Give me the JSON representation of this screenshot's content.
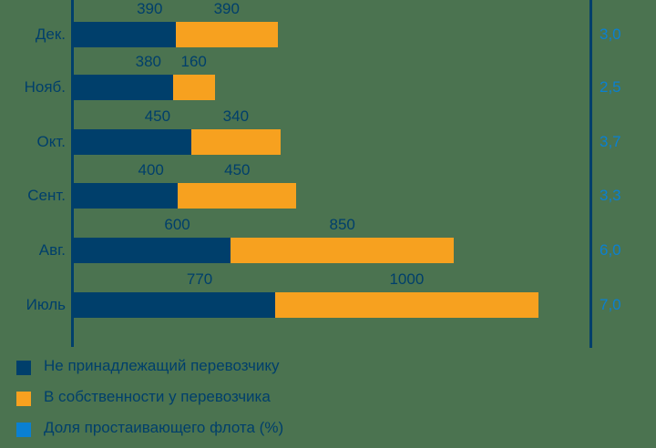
{
  "chart_data": {
    "type": "bar",
    "orientation": "horizontal",
    "stacked": true,
    "categories": [
      "Дек.",
      "Нояб.",
      "Окт.",
      "Сент.",
      "Авг.",
      "Июль"
    ],
    "series": [
      {
        "name": "Не принадлежащий перевозчику",
        "color": "#003f6b",
        "values": [
          390,
          380,
          450,
          400,
          600,
          770
        ]
      },
      {
        "name": "В собственности у перевозчика",
        "color": "#f7a11f",
        "values": [
          390,
          160,
          340,
          450,
          850,
          1000
        ]
      },
      {
        "name": "Доля простаивающего флота (%)",
        "color": "#0a80d2",
        "values": [
          "3,0",
          "2,5",
          "3,7",
          "3,3",
          "6,0",
          "7,0"
        ]
      }
    ],
    "title": "",
    "xlabel": "",
    "ylabel": "",
    "grid": false,
    "legend_position": "bottom-left"
  },
  "rows": [
    {
      "month": "Дек.",
      "blue": "390",
      "orange": "390",
      "pct": "3,0"
    },
    {
      "month": "Нояб.",
      "blue": "380",
      "orange": "160",
      "pct": "2,5"
    },
    {
      "month": "Окт.",
      "blue": "450",
      "orange": "340",
      "pct": "3,7"
    },
    {
      "month": "Сент.",
      "blue": "400",
      "orange": "450",
      "pct": "3,3"
    },
    {
      "month": "Авг.",
      "blue": "600",
      "orange": "850",
      "pct": "6,0"
    },
    {
      "month": "Июль",
      "blue": "770",
      "orange": "1000",
      "pct": "7,0"
    }
  ],
  "legend": [
    {
      "label": "Не принадлежащий перевозчику",
      "color": "#003f6b"
    },
    {
      "label": "В собственности у перевозчика",
      "color": "#f7a11f"
    },
    {
      "label": "Доля простаивающего флота (%)",
      "color": "#0a80d2"
    }
  ]
}
